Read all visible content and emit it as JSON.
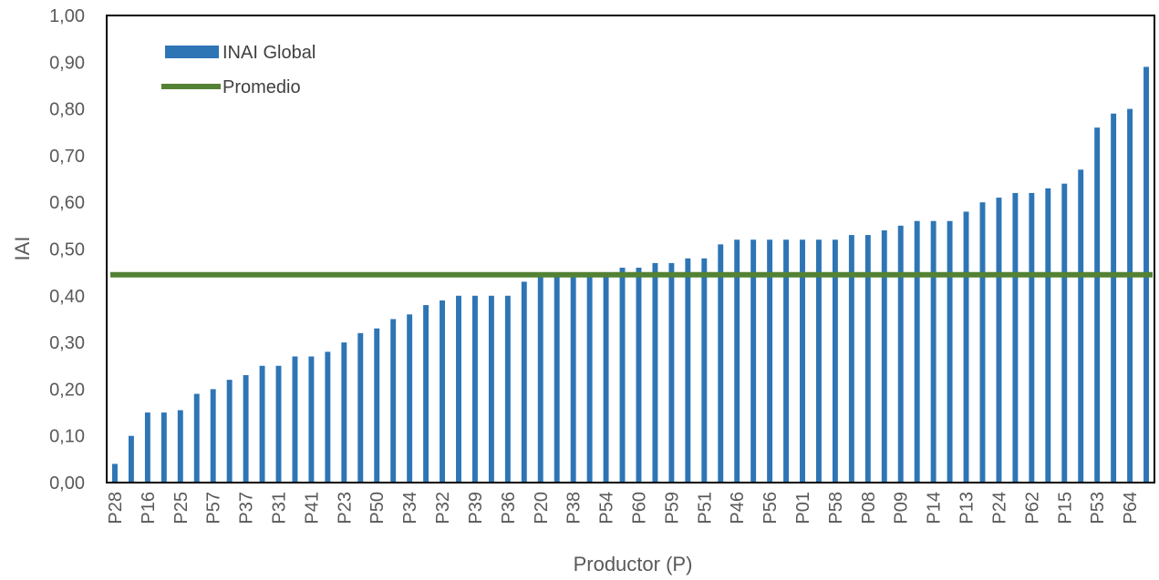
{
  "chart_data": {
    "type": "bar",
    "xlabel": "Productor (P)",
    "ylabel": "IAI",
    "ylim": [
      0,
      1.0
    ],
    "yticks": [
      "0,00",
      "0,10",
      "0,20",
      "0,30",
      "0,40",
      "0,50",
      "0,60",
      "0,70",
      "0,80",
      "0,90",
      "1,00"
    ],
    "categories": [
      "P28",
      "",
      "P16",
      "",
      "P25",
      "",
      "P57",
      "",
      "P37",
      "",
      "P31",
      "",
      "P41",
      "",
      "P23",
      "",
      "P50",
      "",
      "P34",
      "",
      "P32",
      "",
      "P39",
      "",
      "P36",
      "",
      "P20",
      "",
      "P38",
      "",
      "P54",
      "",
      "P60",
      "",
      "P59",
      "",
      "P51",
      "",
      "P46",
      "",
      "P56",
      "",
      "P01",
      "",
      "P58",
      "",
      "P08",
      "",
      "P09",
      "",
      "P14",
      "",
      "P13",
      "",
      "P24",
      "",
      "P62",
      "",
      "P15",
      "",
      "P53",
      "",
      "P64",
      ""
    ],
    "series": [
      {
        "name": "INAI Global",
        "color": "#2e75b6",
        "values": [
          0.04,
          0.1,
          0.15,
          0.15,
          0.155,
          0.19,
          0.2,
          0.22,
          0.23,
          0.25,
          0.25,
          0.27,
          0.27,
          0.28,
          0.3,
          0.32,
          0.33,
          0.35,
          0.36,
          0.38,
          0.39,
          0.4,
          0.4,
          0.4,
          0.4,
          0.43,
          0.45,
          0.45,
          0.45,
          0.45,
          0.45,
          0.46,
          0.46,
          0.47,
          0.47,
          0.48,
          0.48,
          0.51,
          0.52,
          0.52,
          0.52,
          0.52,
          0.52,
          0.52,
          0.52,
          0.53,
          0.53,
          0.54,
          0.55,
          0.56,
          0.56,
          0.56,
          0.58,
          0.6,
          0.61,
          0.62,
          0.62,
          0.63,
          0.64,
          0.67,
          0.76,
          0.79,
          0.8,
          0.89
        ]
      },
      {
        "name": "Promedio",
        "color": "#548235",
        "type": "line",
        "value": 0.445
      }
    ],
    "legend": [
      "INAI Global",
      "Promedio"
    ],
    "legend_position": "top-left",
    "grid": false
  }
}
